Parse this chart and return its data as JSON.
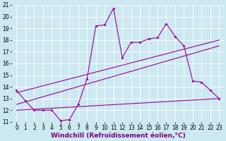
{
  "xlabel": "Windchill (Refroidissement éolien,°C)",
  "bg_color": "#cce8f0",
  "line_color": "#990099",
  "grid_color": "#ffffff",
  "xlim": [
    -0.5,
    23.5
  ],
  "ylim": [
    11,
    21
  ],
  "xticks": [
    0,
    1,
    2,
    3,
    4,
    5,
    6,
    7,
    8,
    9,
    10,
    11,
    12,
    13,
    14,
    15,
    16,
    17,
    18,
    19,
    20,
    21,
    22,
    23
  ],
  "yticks": [
    11,
    12,
    13,
    14,
    15,
    16,
    17,
    18,
    19,
    20,
    21
  ],
  "line1_x": [
    0,
    1,
    2,
    3,
    4,
    5,
    6,
    7,
    8,
    9,
    10,
    11,
    12,
    13,
    14,
    15,
    16,
    17,
    18,
    19,
    20,
    21,
    22,
    23
  ],
  "line1_y": [
    13.7,
    12.8,
    12.0,
    12.0,
    12.0,
    11.1,
    11.2,
    12.5,
    14.7,
    19.2,
    19.3,
    20.7,
    16.5,
    17.8,
    17.8,
    18.1,
    18.2,
    19.4,
    18.3,
    17.5,
    14.5,
    14.4,
    13.7,
    13.0
  ],
  "line2_x": [
    0,
    23
  ],
  "line2_y": [
    12.5,
    17.5
  ],
  "line3_x": [
    0,
    23
  ],
  "line3_y": [
    13.5,
    18.0
  ],
  "line4_x": [
    0,
    23
  ],
  "line4_y": [
    12.0,
    13.0
  ],
  "tick_fontsize": 5.5,
  "xlabel_fontsize": 6.5
}
